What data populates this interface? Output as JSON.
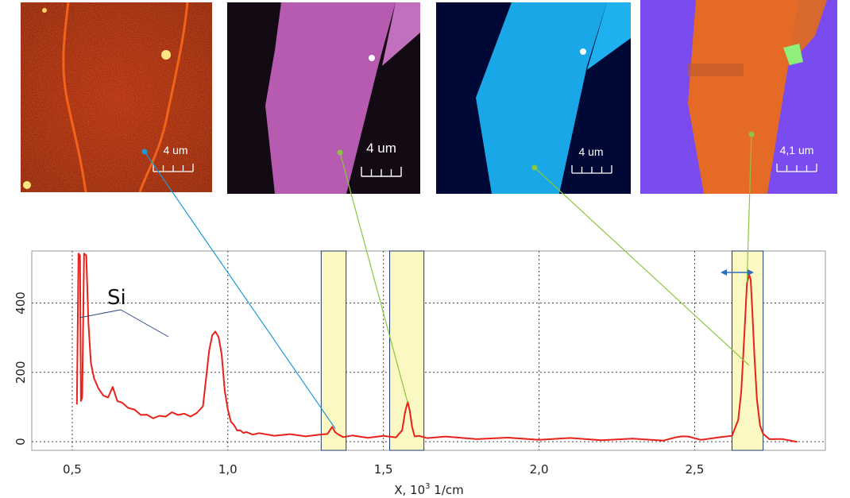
{
  "maps": [
    {
      "id": "map-1",
      "scale_label": "4 um",
      "style": "red-fibers"
    },
    {
      "id": "map-2",
      "scale_label": "4 um",
      "style": "magenta-flake"
    },
    {
      "id": "map-3",
      "scale_label": "4 um",
      "style": "cyan-flake"
    },
    {
      "id": "map-4",
      "scale_label": "4,1 um",
      "style": "orange-purple-flake"
    }
  ],
  "colors": {
    "spectrum": "#e8221a",
    "highlight_fill": "#fbf8c4",
    "highlight_border": "#1e3a6e",
    "connector_blue": "#1a9ad6",
    "connector_green": "#8cc63f",
    "grid": "#444444"
  },
  "annotation": {
    "text": "Si"
  },
  "chart_data": {
    "type": "line",
    "xlabel": "X, 10",
    "xlabel_sup": "3",
    "xlabel_unit": " 1/cm",
    "xlim": [
      0.37,
      2.92
    ],
    "ylim": [
      -25,
      550
    ],
    "x_ticks": [
      0.5,
      1.0,
      1.5,
      2.0,
      2.5
    ],
    "x_tick_labels": [
      "0,5",
      "1,0",
      "1,5",
      "2,0",
      "2,5"
    ],
    "y_ticks": [
      0,
      200,
      400
    ],
    "y_tick_labels": [
      "0",
      "200",
      "400"
    ],
    "grid": true,
    "highlight_bands": [
      [
        1.3,
        1.38
      ],
      [
        1.52,
        1.63
      ],
      [
        2.62,
        2.72
      ]
    ],
    "series": [
      {
        "x": [
          0.515,
          0.52,
          0.525,
          0.528,
          0.532,
          0.538,
          0.545,
          0.552,
          0.56,
          0.57,
          0.585,
          0.6,
          0.615,
          0.63,
          0.645,
          0.66,
          0.68,
          0.7,
          0.72,
          0.74,
          0.76,
          0.78,
          0.8,
          0.82,
          0.84,
          0.86,
          0.88,
          0.9,
          0.92,
          0.94,
          0.95,
          0.96,
          0.97,
          0.98,
          0.99,
          1.0,
          1.01,
          1.02,
          1.03,
          1.04,
          1.05,
          1.06,
          1.08,
          1.1,
          1.15,
          1.2,
          1.25,
          1.3,
          1.32,
          1.335,
          1.345,
          1.355,
          1.37,
          1.4,
          1.45,
          1.5,
          1.54,
          1.56,
          1.57,
          1.578,
          1.585,
          1.592,
          1.6,
          1.615,
          1.64,
          1.7,
          1.8,
          1.9,
          2.0,
          2.1,
          2.2,
          2.3,
          2.4,
          2.44,
          2.46,
          2.48,
          2.52,
          2.58,
          2.62,
          2.64,
          2.65,
          2.66,
          2.668,
          2.675,
          2.68,
          2.685,
          2.692,
          2.7,
          2.71,
          2.72,
          2.74,
          2.78,
          2.83
        ],
        "y": [
          110,
          540,
          540,
          115,
          130,
          540,
          540,
          340,
          230,
          180,
          155,
          130,
          130,
          155,
          120,
          110,
          100,
          90,
          80,
          75,
          70,
          72,
          75,
          82,
          80,
          78,
          75,
          80,
          105,
          260,
          310,
          315,
          305,
          250,
          150,
          90,
          60,
          45,
          35,
          30,
          28,
          25,
          23,
          22,
          20,
          19,
          18,
          18,
          25,
          40,
          30,
          18,
          16,
          15,
          14,
          14,
          15,
          30,
          90,
          112,
          90,
          40,
          18,
          14,
          13,
          12,
          10,
          9,
          8,
          8,
          7,
          6,
          6,
          10,
          18,
          12,
          8,
          10,
          20,
          60,
          150,
          310,
          460,
          480,
          470,
          380,
          250,
          120,
          50,
          20,
          10,
          5,
          2
        ]
      }
    ]
  }
}
